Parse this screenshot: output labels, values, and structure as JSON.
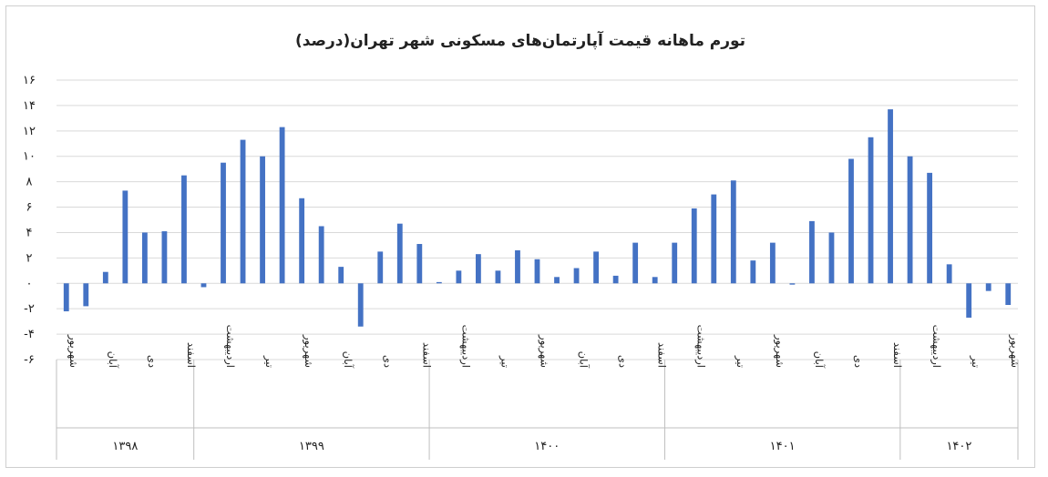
{
  "chart_data": {
    "type": "bar",
    "title": "تورم ماهانه قیمت آپارتمان‌های مسکونی شهر تهران(درصد)",
    "ylim": [
      -6,
      16
    ],
    "yticks": [
      -6,
      -4,
      -2,
      0,
      2,
      4,
      6,
      8,
      10,
      12,
      14,
      16
    ],
    "ytick_labels": [
      "-۶",
      "-۴",
      "-۲",
      "۰",
      "۲",
      "۴",
      "۶",
      "۸",
      "۱۰",
      "۱۲",
      "۱۴",
      "۱۶"
    ],
    "grid": true,
    "legend": "none",
    "bar_color": "#4472c4",
    "groups": [
      {
        "year": "۱۳۹۸",
        "months": [
          {
            "label": "شهریور",
            "value": -2.2
          },
          {
            "label": "",
            "value": -1.8
          },
          {
            "label": "آبان",
            "value": 0.9
          },
          {
            "label": "",
            "value": 7.3
          },
          {
            "label": "دی",
            "value": 4.0
          },
          {
            "label": "",
            "value": 4.1
          },
          {
            "label": "اسفند",
            "value": 8.5
          }
        ]
      },
      {
        "year": "۱۳۹۹",
        "months": [
          {
            "label": "",
            "value": -0.3
          },
          {
            "label": "اردیبهشت",
            "value": 9.5
          },
          {
            "label": "",
            "value": 11.3
          },
          {
            "label": "تیر",
            "value": 10.0
          },
          {
            "label": "",
            "value": 12.3
          },
          {
            "label": "شهریور",
            "value": 6.7
          },
          {
            "label": "",
            "value": 4.5
          },
          {
            "label": "آبان",
            "value": 1.3
          },
          {
            "label": "",
            "value": -3.4
          },
          {
            "label": "دی",
            "value": 2.5
          },
          {
            "label": "",
            "value": 4.7
          },
          {
            "label": "اسفند",
            "value": 3.1
          }
        ]
      },
      {
        "year": "۱۴۰۰",
        "months": [
          {
            "label": "",
            "value": 0.1
          },
          {
            "label": "اردیبهشت",
            "value": 1.0
          },
          {
            "label": "",
            "value": 2.3
          },
          {
            "label": "تیر",
            "value": 1.0
          },
          {
            "label": "",
            "value": 2.6
          },
          {
            "label": "شهریور",
            "value": 1.9
          },
          {
            "label": "",
            "value": 0.5
          },
          {
            "label": "آبان",
            "value": 1.2
          },
          {
            "label": "",
            "value": 2.5
          },
          {
            "label": "دی",
            "value": 0.6
          },
          {
            "label": "",
            "value": 3.2
          },
          {
            "label": "اسفند",
            "value": 0.5
          }
        ]
      },
      {
        "year": "۱۴۰۱",
        "months": [
          {
            "label": "",
            "value": 3.2
          },
          {
            "label": "اردیبهشت",
            "value": 5.9
          },
          {
            "label": "",
            "value": 7.0
          },
          {
            "label": "تیر",
            "value": 8.1
          },
          {
            "label": "",
            "value": 1.8
          },
          {
            "label": "شهریور",
            "value": 3.2
          },
          {
            "label": "",
            "value": -0.1
          },
          {
            "label": "آبان",
            "value": 4.9
          },
          {
            "label": "",
            "value": 4.0
          },
          {
            "label": "دی",
            "value": 9.8
          },
          {
            "label": "",
            "value": 11.5
          },
          {
            "label": "اسفند",
            "value": 13.7
          }
        ]
      },
      {
        "year": "۱۴۰۲",
        "months": [
          {
            "label": "",
            "value": 10.0
          },
          {
            "label": "اردیبهشت",
            "value": 8.7
          },
          {
            "label": "",
            "value": 1.5
          },
          {
            "label": "تیر",
            "value": -2.7
          },
          {
            "label": "",
            "value": -0.6
          },
          {
            "label": "شهریور",
            "value": -1.7
          }
        ]
      }
    ]
  }
}
